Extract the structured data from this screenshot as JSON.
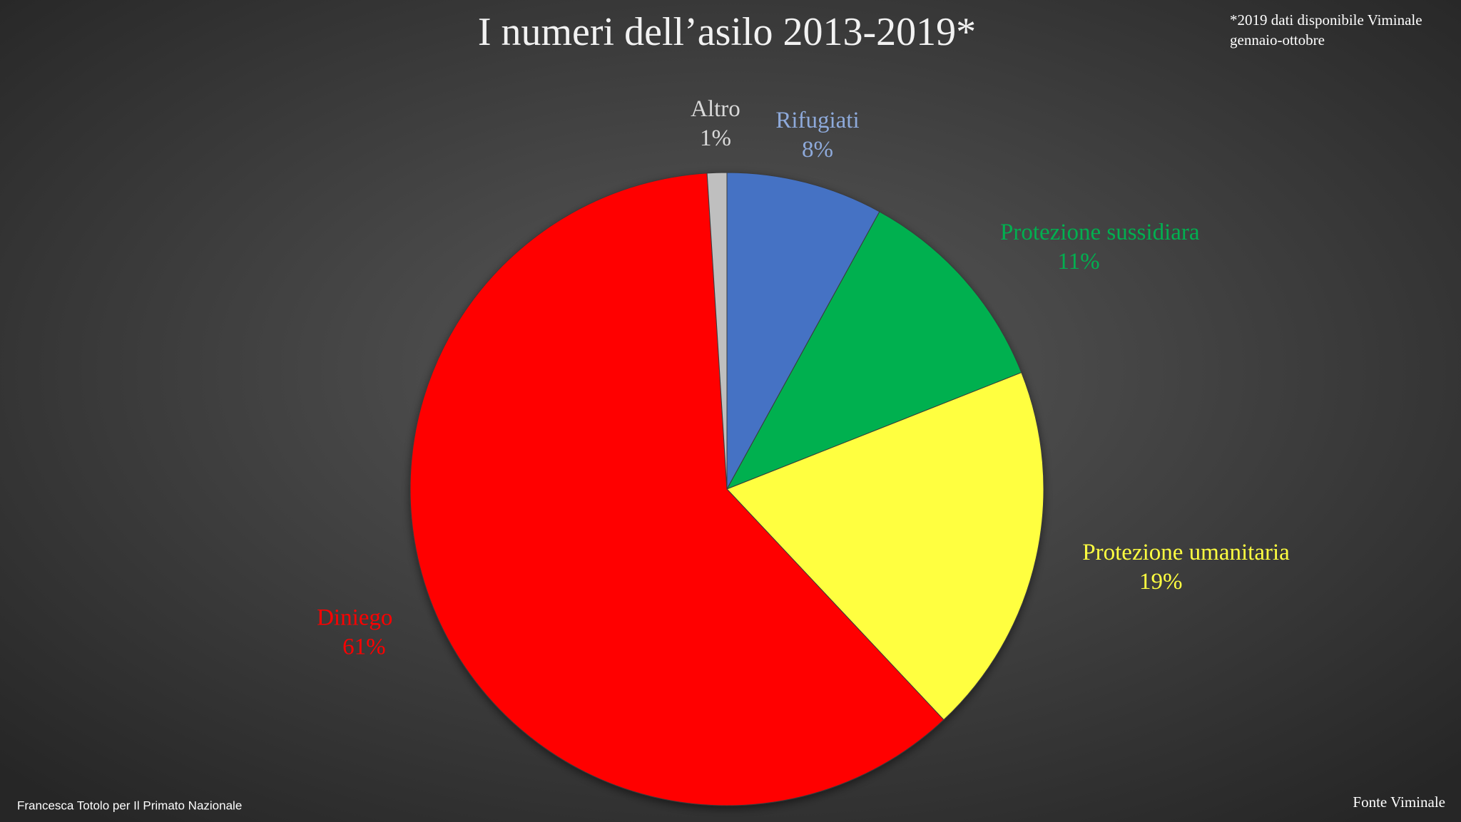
{
  "chart_data": {
    "type": "pie",
    "title": "I numeri dell’asilo 2013-2019*",
    "note": [
      "*2019 dati disponibile Viminale",
      "gennaio-ottobre"
    ],
    "credit": "Francesca Totolo per Il Primato Nazionale",
    "source": "Fonte Viminale",
    "categories": [
      "Rifugiati",
      "Protezione sussidiara",
      "Protezione umanitaria",
      "Diniego",
      "Altro"
    ],
    "values": [
      8,
      11,
      19,
      61,
      1
    ],
    "value_labels": [
      "8%",
      "11%",
      "19%",
      "61%",
      "1%"
    ],
    "colors": [
      "#4472c4",
      "#00b050",
      "#ffff40",
      "#ff0000",
      "#bfbfbf"
    ],
    "label_colors": [
      "#8eaadb",
      "#00b050",
      "#ffff40",
      "#ff0000",
      "#d9d9d9"
    ]
  }
}
